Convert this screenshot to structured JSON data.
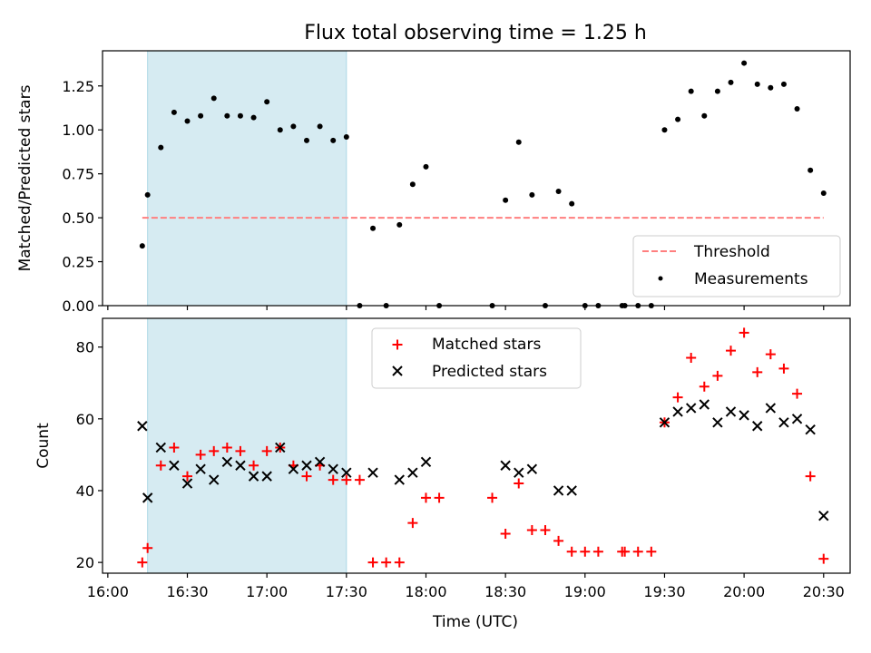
{
  "title": "Flux total observing time = 1.25 h",
  "xlabel": "Time (UTC)",
  "colors": {
    "shade": "#add8e6",
    "threshold": "#ff7f7f",
    "matched": "#ff0000",
    "predicted": "#000000",
    "measure": "#000000"
  },
  "chart_data": [
    {
      "type": "scatter",
      "ylabel": "Matched/Predicted stars",
      "ylim": [
        0,
        1.45
      ],
      "xlim": [
        "15:58",
        "20:40"
      ],
      "yticks": [
        "0.00",
        "0.25",
        "0.50",
        "0.75",
        "1.00",
        "1.25"
      ],
      "shaded_region": [
        "16:15",
        "17:30"
      ],
      "threshold": {
        "y": 0.5,
        "x": [
          "16:13",
          "20:30"
        ]
      },
      "legend": [
        "Threshold",
        "Measurements"
      ],
      "legend_position": "lower right",
      "series": [
        {
          "name": "Measurements",
          "points": [
            [
              "16:13",
              0.34
            ],
            [
              "16:15",
              0.63
            ],
            [
              "16:20",
              0.9
            ],
            [
              "16:25",
              1.1
            ],
            [
              "16:30",
              1.05
            ],
            [
              "16:35",
              1.08
            ],
            [
              "16:40",
              1.18
            ],
            [
              "16:45",
              1.08
            ],
            [
              "16:50",
              1.08
            ],
            [
              "16:55",
              1.07
            ],
            [
              "17:00",
              1.16
            ],
            [
              "17:05",
              1.0
            ],
            [
              "17:10",
              1.02
            ],
            [
              "17:15",
              0.94
            ],
            [
              "17:20",
              1.02
            ],
            [
              "17:25",
              0.94
            ],
            [
              "17:30",
              0.96
            ],
            [
              "17:35",
              0.0
            ],
            [
              "17:40",
              0.44
            ],
            [
              "17:45",
              0.0
            ],
            [
              "17:50",
              0.46
            ],
            [
              "17:55",
              0.69
            ],
            [
              "18:00",
              0.79
            ],
            [
              "18:05",
              0.0
            ],
            [
              "18:25",
              0.0
            ],
            [
              "18:30",
              0.6
            ],
            [
              "18:35",
              0.93
            ],
            [
              "18:40",
              0.63
            ],
            [
              "18:45",
              0.0
            ],
            [
              "18:50",
              0.65
            ],
            [
              "18:55",
              0.58
            ],
            [
              "19:00",
              0.0
            ],
            [
              "19:05",
              0.0
            ],
            [
              "19:14",
              0.0
            ],
            [
              "19:15",
              0.0
            ],
            [
              "19:20",
              0.0
            ],
            [
              "19:25",
              0.0
            ],
            [
              "19:30",
              1.0
            ],
            [
              "19:35",
              1.06
            ],
            [
              "19:40",
              1.22
            ],
            [
              "19:45",
              1.08
            ],
            [
              "19:50",
              1.22
            ],
            [
              "19:55",
              1.27
            ],
            [
              "20:00",
              1.38
            ],
            [
              "20:05",
              1.26
            ],
            [
              "20:10",
              1.24
            ],
            [
              "20:15",
              1.26
            ],
            [
              "20:20",
              1.12
            ],
            [
              "20:25",
              0.77
            ],
            [
              "20:30",
              0.64
            ]
          ]
        }
      ]
    },
    {
      "type": "scatter",
      "ylabel": "Count",
      "ylim": [
        17,
        88
      ],
      "xlim": [
        "15:58",
        "20:40"
      ],
      "yticks": [
        "20",
        "40",
        "60",
        "80"
      ],
      "xticks": [
        "16:00",
        "16:30",
        "17:00",
        "17:30",
        "18:00",
        "18:30",
        "19:00",
        "19:30",
        "20:00",
        "20:30"
      ],
      "shaded_region": [
        "16:15",
        "17:30"
      ],
      "legend": [
        "Matched stars",
        "Predicted stars"
      ],
      "legend_position": "upper center",
      "series": [
        {
          "name": "Matched stars",
          "points": [
            [
              "16:13",
              20
            ],
            [
              "16:15",
              24
            ],
            [
              "16:20",
              47
            ],
            [
              "16:25",
              52
            ],
            [
              "16:30",
              44
            ],
            [
              "16:35",
              50
            ],
            [
              "16:40",
              51
            ],
            [
              "16:45",
              52
            ],
            [
              "16:50",
              51
            ],
            [
              "16:55",
              47
            ],
            [
              "17:00",
              51
            ],
            [
              "17:05",
              52
            ],
            [
              "17:10",
              47
            ],
            [
              "17:15",
              44
            ],
            [
              "17:20",
              47
            ],
            [
              "17:25",
              43
            ],
            [
              "17:30",
              43
            ],
            [
              "17:35",
              43
            ],
            [
              "17:40",
              20
            ],
            [
              "17:45",
              20
            ],
            [
              "17:50",
              20
            ],
            [
              "17:55",
              31
            ],
            [
              "18:00",
              38
            ],
            [
              "18:05",
              38
            ],
            [
              "18:25",
              38
            ],
            [
              "18:30",
              28
            ],
            [
              "18:35",
              42
            ],
            [
              "18:40",
              29
            ],
            [
              "18:45",
              29
            ],
            [
              "18:50",
              26
            ],
            [
              "18:55",
              23
            ],
            [
              "19:00",
              23
            ],
            [
              "19:05",
              23
            ],
            [
              "19:14",
              23
            ],
            [
              "19:15",
              23
            ],
            [
              "19:20",
              23
            ],
            [
              "19:25",
              23
            ],
            [
              "19:30",
              59
            ],
            [
              "19:35",
              66
            ],
            [
              "19:40",
              77
            ],
            [
              "19:45",
              69
            ],
            [
              "19:50",
              72
            ],
            [
              "19:55",
              79
            ],
            [
              "20:00",
              84
            ],
            [
              "20:05",
              73
            ],
            [
              "20:10",
              78
            ],
            [
              "20:15",
              74
            ],
            [
              "20:20",
              67
            ],
            [
              "20:25",
              44
            ],
            [
              "20:30",
              21
            ]
          ]
        },
        {
          "name": "Predicted stars",
          "points": [
            [
              "16:13",
              58
            ],
            [
              "16:15",
              38
            ],
            [
              "16:20",
              52
            ],
            [
              "16:25",
              47
            ],
            [
              "16:30",
              42
            ],
            [
              "16:35",
              46
            ],
            [
              "16:40",
              43
            ],
            [
              "16:45",
              48
            ],
            [
              "16:50",
              47
            ],
            [
              "16:55",
              44
            ],
            [
              "17:00",
              44
            ],
            [
              "17:05",
              52
            ],
            [
              "17:10",
              46
            ],
            [
              "17:15",
              47
            ],
            [
              "17:20",
              48
            ],
            [
              "17:25",
              46
            ],
            [
              "17:30",
              45
            ],
            [
              "17:40",
              45
            ],
            [
              "17:50",
              43
            ],
            [
              "17:55",
              45
            ],
            [
              "18:00",
              48
            ],
            [
              "18:30",
              47
            ],
            [
              "18:35",
              45
            ],
            [
              "18:40",
              46
            ],
            [
              "18:50",
              40
            ],
            [
              "18:55",
              40
            ],
            [
              "19:30",
              59
            ],
            [
              "19:35",
              62
            ],
            [
              "19:40",
              63
            ],
            [
              "19:45",
              64
            ],
            [
              "19:50",
              59
            ],
            [
              "19:55",
              62
            ],
            [
              "20:00",
              61
            ],
            [
              "20:05",
              58
            ],
            [
              "20:10",
              63
            ],
            [
              "20:15",
              59
            ],
            [
              "20:20",
              60
            ],
            [
              "20:25",
              57
            ],
            [
              "20:30",
              33
            ]
          ]
        }
      ]
    }
  ]
}
